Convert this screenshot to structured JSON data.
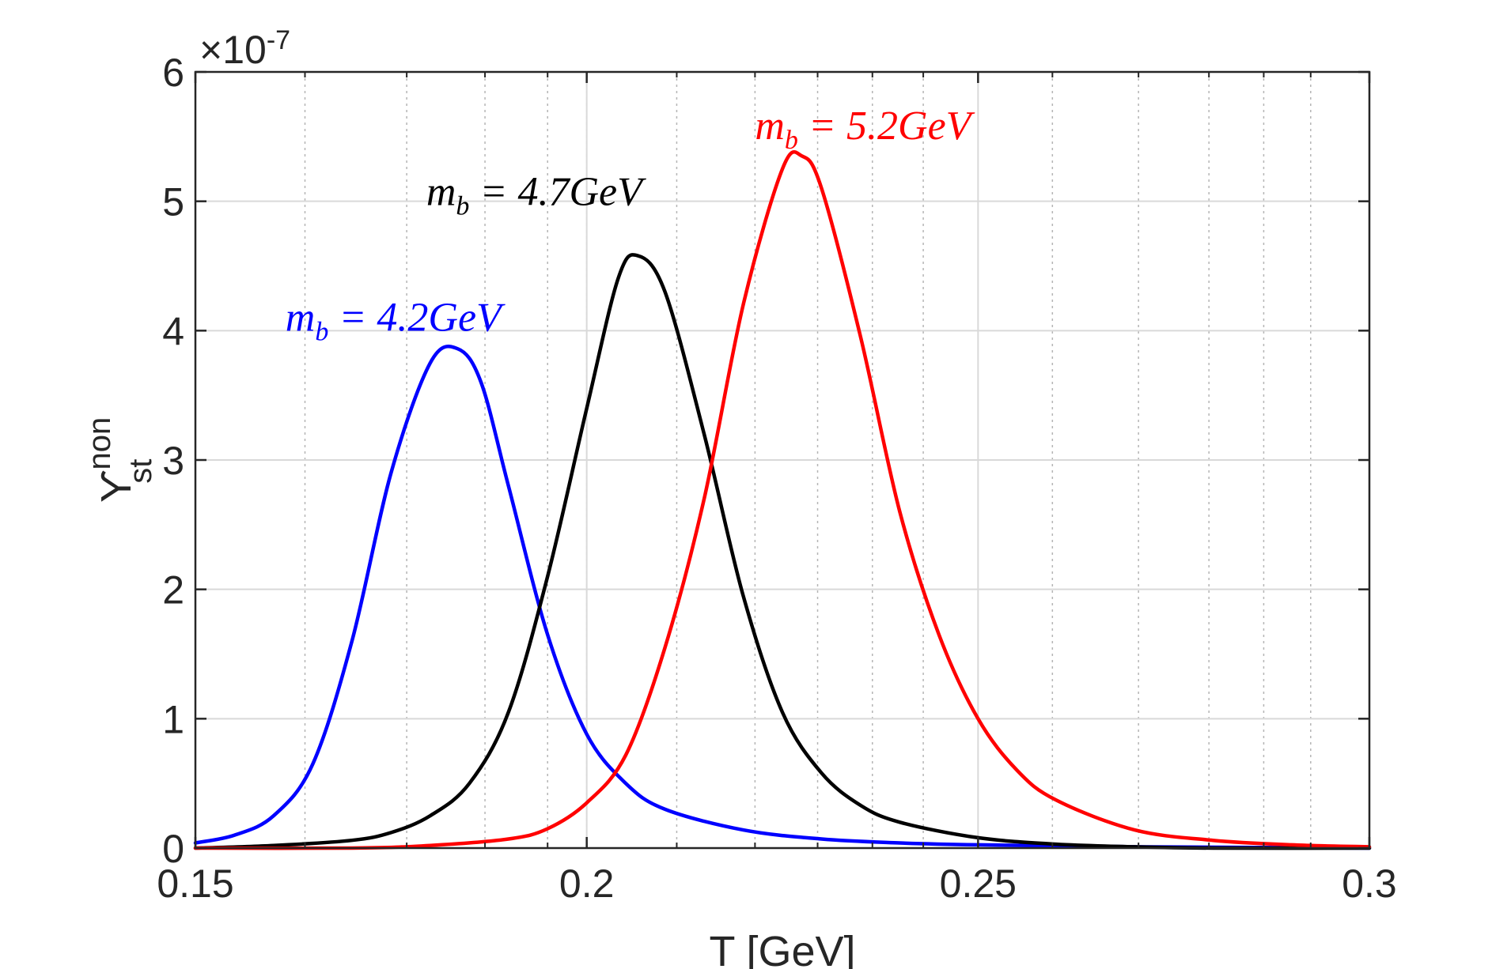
{
  "chart_data": {
    "type": "line",
    "xlabel": "T [GeV]",
    "ylabel_main": "ϒ",
    "ylabel_sub": "st",
    "ylabel_sup": "non",
    "multiplier_base": "×10",
    "multiplier_exp": "-7",
    "xlim": [
      0.15,
      0.3
    ],
    "ylim": [
      0,
      6
    ],
    "x_ticks": [
      0.15,
      0.2,
      0.25,
      0.3
    ],
    "x_tick_labels": [
      "0.15",
      "0.2",
      "0.25",
      "0.3"
    ],
    "y_ticks": [
      0,
      1,
      2,
      3,
      4,
      5,
      6
    ],
    "y_tick_labels": [
      "0",
      "1",
      "2",
      "3",
      "4",
      "5",
      "6"
    ],
    "x_minor_ticks": [
      0.164,
      0.177,
      0.187,
      0.195,
      0.2,
      0.2115,
      0.2215,
      0.2295,
      0.2365,
      0.243,
      0.2595,
      0.2705,
      0.2795,
      0.2865,
      0.2925
    ],
    "grid": true,
    "series": [
      {
        "name": "m_b = 4.2GeV",
        "color": "#0000ff",
        "x": [
          0.15,
          0.155,
          0.16,
          0.165,
          0.17,
          0.175,
          0.18,
          0.1835,
          0.1865,
          0.19,
          0.195,
          0.2,
          0.205,
          0.21,
          0.22,
          0.23,
          0.24,
          0.25,
          0.27,
          0.3
        ],
        "values": [
          0.04,
          0.1,
          0.25,
          0.65,
          1.6,
          2.9,
          3.75,
          3.86,
          3.6,
          2.8,
          1.65,
          0.88,
          0.5,
          0.3,
          0.14,
          0.07,
          0.04,
          0.025,
          0.01,
          0.0
        ]
      },
      {
        "name": "m_b = 4.7GeV",
        "color": "#000000",
        "x": [
          0.15,
          0.16,
          0.17,
          0.175,
          0.18,
          0.185,
          0.19,
          0.195,
          0.2,
          0.204,
          0.2065,
          0.21,
          0.215,
          0.22,
          0.225,
          0.23,
          0.235,
          0.24,
          0.25,
          0.26,
          0.27,
          0.28,
          0.3
        ],
        "values": [
          0.0,
          0.02,
          0.06,
          0.12,
          0.25,
          0.5,
          1.05,
          2.1,
          3.4,
          4.4,
          4.58,
          4.3,
          3.2,
          1.95,
          1.05,
          0.58,
          0.33,
          0.2,
          0.08,
          0.03,
          0.01,
          0.0,
          0.0
        ]
      },
      {
        "name": "m_b = 5.2GeV",
        "color": "#ff0000",
        "x": [
          0.15,
          0.17,
          0.18,
          0.19,
          0.195,
          0.2,
          0.205,
          0.21,
          0.215,
          0.22,
          0.225,
          0.2275,
          0.23,
          0.235,
          0.24,
          0.245,
          0.25,
          0.255,
          0.26,
          0.27,
          0.28,
          0.29,
          0.3
        ],
        "values": [
          0.0,
          0.0,
          0.02,
          0.07,
          0.15,
          0.35,
          0.72,
          1.55,
          2.7,
          4.2,
          5.25,
          5.35,
          5.1,
          3.95,
          2.6,
          1.65,
          1.0,
          0.6,
          0.37,
          0.14,
          0.06,
          0.025,
          0.01
        ]
      }
    ],
    "annotations": [
      {
        "series": "m_b = 4.2GeV",
        "base": "m",
        "sub": "b",
        "rest": " = 4.2GeV",
        "color": "#0000ff",
        "x": 0.1615,
        "y": 4.0
      },
      {
        "series": "m_b = 4.7GeV",
        "base": "m",
        "sub": "b",
        "rest": " = 4.7GeV",
        "color": "#000000",
        "x": 0.1795,
        "y": 4.97
      },
      {
        "series": "m_b = 5.2GeV",
        "base": "m",
        "sub": "b",
        "rest": " = 5.2GeV",
        "color": "#ff0000",
        "x": 0.2215,
        "y": 5.48
      }
    ]
  }
}
